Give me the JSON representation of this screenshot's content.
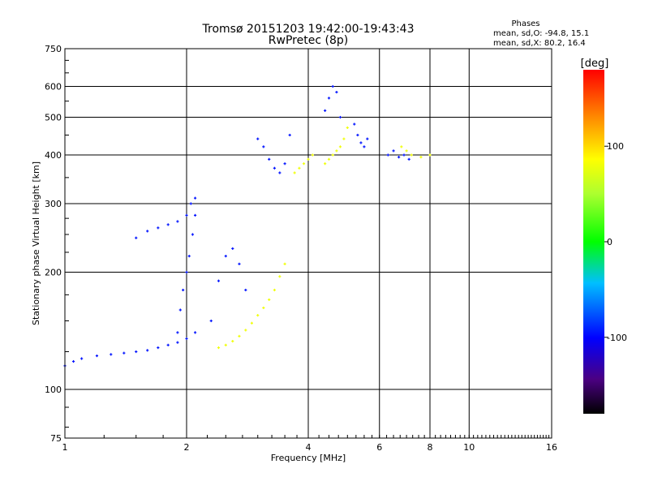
{
  "chart_data": {
    "type": "scatter",
    "title": "Tromsø 20151203 19:42:00-19:43:43",
    "subtitle": "RwPretec (8p)",
    "xlabel": "Frequency [MHz]",
    "ylabel": "Stationary phase Virtual Height [km]",
    "x_scale": "log",
    "y_scale": "log",
    "xlim": [
      1,
      16
    ],
    "ylim": [
      75,
      750
    ],
    "x_ticks": [
      "1",
      "2",
      "4",
      "6",
      "8",
      "10",
      "16"
    ],
    "y_ticks": [
      "75",
      "100",
      "200",
      "300",
      "400",
      "500",
      "600",
      "750"
    ],
    "grid": true,
    "stats": {
      "header": "Phases",
      "line_o": "mean, sd,O: -94.8, 15.1",
      "line_x": "mean, sd,X: 80.2, 16.4"
    },
    "colorbar": {
      "label": "[deg]",
      "range": [
        -180,
        180
      ],
      "ticks": [
        "100",
        "0",
        "-100"
      ],
      "colormap": "rainbow"
    },
    "series": [
      {
        "mode": "O",
        "color_value": -95,
        "segments": [
          {
            "x": [
              1.0,
              1.05,
              1.1,
              1.2,
              1.3,
              1.4,
              1.5,
              1.6,
              1.7,
              1.8,
              1.9,
              2.0,
              2.1
            ],
            "y": [
              115,
              118,
              120,
              122,
              123,
              124,
              125,
              126,
              128,
              130,
              132,
              135,
              140
            ]
          },
          {
            "x": [
              1.5,
              1.6,
              1.7,
              1.8,
              1.9,
              2.0,
              2.05,
              2.1
            ],
            "y": [
              245,
              255,
              260,
              265,
              270,
              280,
              300,
              310
            ]
          },
          {
            "x": [
              1.9,
              1.93,
              1.96,
              2.0,
              2.03,
              2.07,
              2.1
            ],
            "y": [
              140,
              160,
              180,
              200,
              220,
              250,
              280
            ]
          },
          {
            "x": [
              2.3,
              2.4,
              2.5,
              2.6,
              2.7,
              2.8
            ],
            "y": [
              150,
              190,
              220,
              230,
              210,
              180
            ]
          },
          {
            "x": [
              3.0,
              3.1,
              3.2,
              3.3,
              3.4,
              3.5,
              3.6
            ],
            "y": [
              440,
              420,
              390,
              370,
              360,
              380,
              450
            ]
          },
          {
            "x": [
              4.4,
              4.5,
              4.6,
              4.7,
              4.8
            ],
            "y": [
              520,
              560,
              600,
              580,
              500
            ]
          },
          {
            "x": [
              5.2,
              5.3,
              5.4,
              5.5,
              5.6
            ],
            "y": [
              480,
              450,
              430,
              420,
              440
            ]
          },
          {
            "x": [
              6.3,
              6.5,
              6.7,
              6.9,
              7.1
            ],
            "y": [
              400,
              410,
              395,
              400,
              390
            ]
          }
        ]
      },
      {
        "mode": "X",
        "color_value": 80,
        "segments": [
          {
            "x": [
              2.4,
              2.5,
              2.6,
              2.7,
              2.8,
              2.9,
              3.0,
              3.1,
              3.2,
              3.3,
              3.4,
              3.5
            ],
            "y": [
              128,
              130,
              133,
              137,
              142,
              148,
              155,
              162,
              170,
              180,
              195,
              210
            ]
          },
          {
            "x": [
              3.7,
              3.8,
              3.9,
              4.0,
              4.1
            ],
            "y": [
              360,
              370,
              380,
              390,
              400
            ]
          },
          {
            "x": [
              4.4,
              4.5,
              4.6,
              4.7,
              4.8,
              4.9,
              5.0
            ],
            "y": [
              380,
              390,
              400,
              410,
              420,
              440,
              470
            ]
          },
          {
            "x": [
              6.8,
              7.0,
              7.2,
              7.6,
              8.0
            ],
            "y": [
              420,
              410,
              400,
              395,
              400
            ]
          }
        ]
      }
    ]
  }
}
